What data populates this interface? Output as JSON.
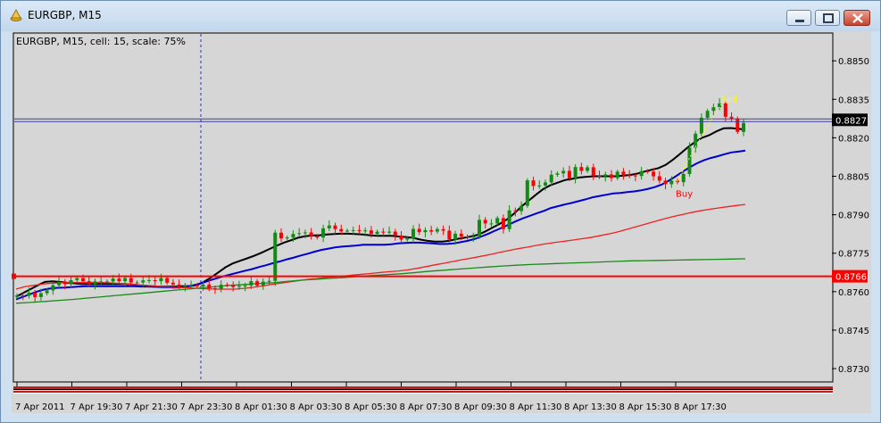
{
  "window": {
    "title": "EURGBP, M15"
  },
  "chart_data": {
    "type": "candlestick",
    "title": "EURGBP, M15, cell: 15, scale: 75%",
    "symbol": "EURGBP",
    "timeframe": "M15",
    "price_ticks": [
      "0.8850",
      "0.8835",
      "0.8820",
      "0.8805",
      "0.8790",
      "0.8775",
      "0.8760",
      "0.8745",
      "0.8730"
    ],
    "price_tick_values": [
      0.885,
      0.8835,
      0.882,
      0.8805,
      0.879,
      0.8775,
      0.876,
      0.8745,
      0.873
    ],
    "ylim": [
      0.87248,
      0.88605
    ],
    "time_ticks": [
      "7 Apr 2011",
      "7 Apr 19:30",
      "7 Apr 21:30",
      "7 Apr 23:30",
      "8 Apr 01:30",
      "8 Apr 03:30",
      "8 Apr 05:30",
      "8 Apr 07:30",
      "8 Apr 09:30",
      "8 Apr 11:30",
      "8 Apr 13:30",
      "8 Apr 15:30",
      "8 Apr 17:30"
    ],
    "current_price": {
      "label": "0.8827",
      "value": 0.8827
    },
    "horizontal_level": {
      "label": "0.8766",
      "value": 0.8766,
      "color": "#ff0000"
    },
    "signals": [
      {
        "label": "Buy",
        "color": "#ff0000",
        "value": 0.88022
      },
      {
        "label": "Sell",
        "color": "#ffff00",
        "value": 0.88352
      }
    ],
    "series": [
      {
        "style": "close",
        "color": "#000000",
        "values": [
          0.87585,
          0.87584,
          0.87596,
          0.87579,
          0.87594,
          0.87605,
          0.87625,
          0.87638,
          0.87629,
          0.87645,
          0.87653,
          0.87641,
          0.87629,
          0.8764,
          0.8764,
          0.8764,
          0.87651,
          0.87641,
          0.87653,
          0.87636,
          0.87636,
          0.87644,
          0.87645,
          0.87641,
          0.87653,
          0.87635,
          0.87628,
          0.87621,
          0.87623,
          0.87626,
          0.87621,
          0.87628,
          0.87613,
          0.87611,
          0.87627,
          0.87626,
          0.87618,
          0.87622,
          0.87624,
          0.87641,
          0.87624,
          0.87639,
          0.87642,
          0.8783,
          0.87808,
          0.87811,
          0.87825,
          0.87828,
          0.87831,
          0.87817,
          0.87811,
          0.87847,
          0.87858,
          0.87844,
          0.87835,
          0.87838,
          0.8784,
          0.87836,
          0.87839,
          0.87825,
          0.87834,
          0.8783,
          0.87834,
          0.87819,
          0.87803,
          0.87808,
          0.87845,
          0.87832,
          0.8784,
          0.87834,
          0.87844,
          0.87838,
          0.87803,
          0.87826,
          0.87815,
          0.87811,
          0.87816,
          0.8788,
          0.87866,
          0.87866,
          0.87887,
          0.87844,
          0.87917,
          0.87914,
          0.87935,
          0.88034,
          0.88012,
          0.88014,
          0.88026,
          0.88056,
          0.88061,
          0.88071,
          0.88042,
          0.88086,
          0.88071,
          0.88085,
          0.88052,
          0.8805,
          0.88057,
          0.88043,
          0.88068,
          0.88054,
          0.88053,
          0.88051,
          0.8807,
          0.88068,
          0.8805,
          0.88033,
          0.88019,
          0.88033,
          0.88027,
          0.88059,
          0.88162,
          0.88216,
          0.88278,
          0.88305,
          0.88319,
          0.88334,
          0.88282,
          0.88275,
          0.88223,
          0.88258
        ]
      },
      {
        "style": "line",
        "color": "#000000",
        "name": "",
        "values": [
          0.8758,
          0.87595,
          0.8761,
          0.87625,
          0.87638,
          0.8764,
          0.87638,
          0.87635,
          0.87633,
          0.8763,
          0.8763,
          0.8763,
          0.8763,
          0.8763,
          0.8763,
          0.8763,
          0.87628,
          0.87625,
          0.87623,
          0.8762,
          0.8762,
          0.8762,
          0.8762,
          0.87621,
          0.87622,
          0.87625,
          0.87638,
          0.87655,
          0.87675,
          0.87695,
          0.8771,
          0.8772,
          0.8773,
          0.8774,
          0.87752,
          0.87765,
          0.87778,
          0.8779,
          0.878,
          0.8781,
          0.87816,
          0.87819,
          0.8782,
          0.87823,
          0.87825,
          0.87826,
          0.87826,
          0.87825,
          0.87823,
          0.8782,
          0.87818,
          0.87818,
          0.87818,
          0.87815,
          0.87813,
          0.8781,
          0.87803,
          0.87798,
          0.87795,
          0.87795,
          0.87798,
          0.87805,
          0.8781,
          0.87815,
          0.87822,
          0.87835,
          0.8785,
          0.87865,
          0.87882,
          0.87905,
          0.87932,
          0.87955,
          0.87978,
          0.88,
          0.88015,
          0.88025,
          0.88035,
          0.8804,
          0.88045,
          0.88048,
          0.8805,
          0.8805,
          0.8805,
          0.8805,
          0.88052,
          0.88055,
          0.8806,
          0.88068,
          0.88075,
          0.88082,
          0.88095,
          0.88115,
          0.88138,
          0.88162,
          0.88183,
          0.882,
          0.8821,
          0.88225,
          0.88237,
          0.88238,
          0.88235,
          0.88232
        ]
      },
      {
        "style": "line",
        "color": "#0000cc",
        "name": "",
        "values": [
          0.8757,
          0.8758,
          0.8759,
          0.876,
          0.87608,
          0.87613,
          0.87615,
          0.87616,
          0.87618,
          0.8762,
          0.87621,
          0.87621,
          0.87621,
          0.87621,
          0.87621,
          0.87621,
          0.87621,
          0.87621,
          0.8762,
          0.8762,
          0.87619,
          0.87618,
          0.87617,
          0.87616,
          0.87618,
          0.87622,
          0.87628,
          0.87636,
          0.87645,
          0.87653,
          0.87661,
          0.87668,
          0.87675,
          0.87682,
          0.87688,
          0.87696,
          0.87703,
          0.87711,
          0.87718,
          0.87726,
          0.87733,
          0.87741,
          0.87748,
          0.87756,
          0.87763,
          0.87768,
          0.87773,
          0.87776,
          0.87778,
          0.8778,
          0.87783,
          0.87783,
          0.87783,
          0.87783,
          0.87785,
          0.87788,
          0.8779,
          0.87791,
          0.87791,
          0.8779,
          0.87788,
          0.87786,
          0.87786,
          0.87788,
          0.87793,
          0.87798,
          0.87805,
          0.87815,
          0.87826,
          0.87838,
          0.8785,
          0.87862,
          0.87875,
          0.87886,
          0.87896,
          0.87906,
          0.87915,
          0.87926,
          0.87933,
          0.8794,
          0.87946,
          0.87953,
          0.8796,
          0.87968,
          0.87973,
          0.87978,
          0.87983,
          0.87985,
          0.87988,
          0.87991,
          0.87995,
          0.88001,
          0.88008,
          0.88018,
          0.88033,
          0.8805,
          0.88068,
          0.88085,
          0.881,
          0.88112,
          0.88121,
          0.88128,
          0.88136,
          0.88143,
          0.88146,
          0.8815
        ]
      },
      {
        "style": "line",
        "color": "#ee2222",
        "name": "",
        "values": [
          0.8761,
          0.8762,
          0.87625,
          0.8763,
          0.87633,
          0.87635,
          0.87636,
          0.87636,
          0.87636,
          0.87636,
          0.87635,
          0.87633,
          0.8763,
          0.87628,
          0.87625,
          0.87623,
          0.8762,
          0.87618,
          0.87616,
          0.87615,
          0.87613,
          0.87611,
          0.8761,
          0.8761,
          0.8761,
          0.87613,
          0.87617,
          0.87622,
          0.87628,
          0.87633,
          0.87638,
          0.87643,
          0.87648,
          0.87651,
          0.87655,
          0.87658,
          0.87661,
          0.87665,
          0.87668,
          0.87671,
          0.87675,
          0.87678,
          0.87681,
          0.87685,
          0.87691,
          0.87698,
          0.87705,
          0.87711,
          0.87718,
          0.87725,
          0.87731,
          0.87738,
          0.87745,
          0.87753,
          0.8776,
          0.87767,
          0.87773,
          0.8778,
          0.87786,
          0.87791,
          0.87796,
          0.87801,
          0.87806,
          0.87811,
          0.87818,
          0.87825,
          0.87833,
          0.87843,
          0.87853,
          0.87863,
          0.87873,
          0.87883,
          0.87892,
          0.879,
          0.87908,
          0.87915,
          0.87921,
          0.87926,
          0.87931,
          0.87936,
          0.8794
        ]
      },
      {
        "style": "line",
        "color": "#1a8a1a",
        "name": "",
        "values": [
          0.87555,
          0.87558,
          0.87562,
          0.87566,
          0.8757,
          0.87575,
          0.8758,
          0.87585,
          0.8759,
          0.87595,
          0.876,
          0.87605,
          0.8761,
          0.87615,
          0.8762,
          0.87625,
          0.87628,
          0.87632,
          0.87635,
          0.8764,
          0.87645,
          0.87648,
          0.87652,
          0.87655,
          0.8766,
          0.87663,
          0.87667,
          0.8767,
          0.87675,
          0.8768,
          0.87684,
          0.87688,
          0.87692,
          0.87696,
          0.877,
          0.87703,
          0.87706,
          0.87708,
          0.8771,
          0.87712,
          0.87714,
          0.87716,
          0.87718,
          0.8772,
          0.87721,
          0.87722,
          0.87723,
          0.87724,
          0.87725,
          0.87726,
          0.87727,
          0.87728
        ]
      }
    ]
  }
}
